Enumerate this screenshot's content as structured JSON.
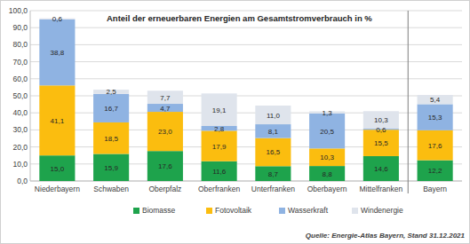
{
  "chart_data": {
    "type": "bar",
    "stacked": true,
    "data_labels": true,
    "grid": true,
    "legend": "bottom",
    "title": "Anteil der erneuerbaren Energien am Gesamtstromverbrauch in %",
    "annotation": "Quelle: Energie-Atlas Bayern, Stand 31.12.2021",
    "categories": [
      "Niederbayern",
      "Schwaben",
      "Oberpfalz",
      "Oberfranken",
      "Unterfranken",
      "Oberbayern",
      "Mittelfranken",
      "Bayern"
    ],
    "series": [
      {
        "name": "Biomasse",
        "color": "#1ea34c",
        "values": [
          15.0,
          15.9,
          17.6,
          11.6,
          8.7,
          8.8,
          14.6,
          12.2
        ],
        "value_labels": [
          "15,0",
          "15,9",
          "17,6",
          "11,6",
          "8,7",
          "8,8",
          "14,6",
          "12,2"
        ]
      },
      {
        "name": "Fotovoltaik",
        "color": "#fbbd0f",
        "values": [
          41.1,
          18.5,
          23.0,
          17.9,
          16.5,
          10.3,
          15.5,
          17.6
        ],
        "value_labels": [
          "41,1",
          "18,5",
          "23,0",
          "17,9",
          "16,5",
          "10,3",
          "15,5",
          "17,6"
        ]
      },
      {
        "name": "Wasserkraft",
        "color": "#8fb3e2",
        "values": [
          38.8,
          16.7,
          4.7,
          2.8,
          8.1,
          20.5,
          0.6,
          15.3
        ],
        "value_labels": [
          "38,8",
          "16,7",
          "4,7",
          "2,8",
          "8,1",
          "20,5",
          "0,6",
          "15,3"
        ]
      },
      {
        "name": "Windenergie",
        "color": "#dfe4ec",
        "values": [
          0.6,
          2.5,
          7.7,
          19.1,
          11.0,
          1.3,
          10.3,
          5.4
        ],
        "value_labels": [
          "0,6",
          "2,5",
          "7,7",
          "19,1",
          "11,0",
          "1,3",
          "10,3",
          "5,4"
        ]
      }
    ],
    "ylim": [
      0,
      100
    ],
    "yticks": [
      {
        "value": 0,
        "label": "0,0"
      },
      {
        "value": 10,
        "label": "10,0"
      },
      {
        "value": 20,
        "label": "20,0"
      },
      {
        "value": 30,
        "label": "30,0"
      },
      {
        "value": 40,
        "label": "40,0"
      },
      {
        "value": 50,
        "label": "50,0"
      },
      {
        "value": 60,
        "label": "60,0"
      },
      {
        "value": 70,
        "label": "70,0"
      },
      {
        "value": 80,
        "label": "80,0"
      },
      {
        "value": 90,
        "label": "90,0"
      },
      {
        "value": 100,
        "label": "100,0"
      }
    ]
  }
}
